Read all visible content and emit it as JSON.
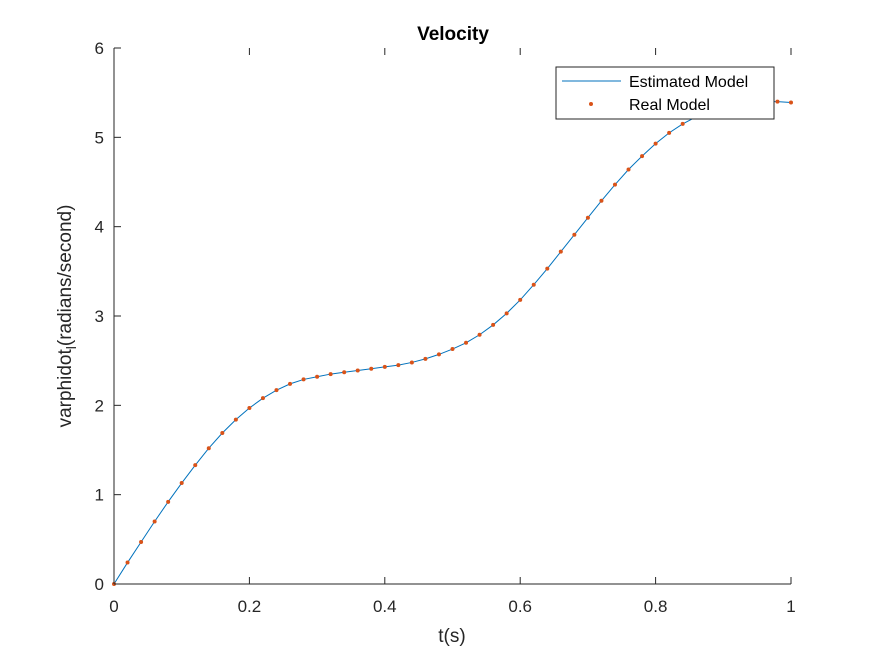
{
  "chart_data": {
    "type": "line",
    "title": "Velocity",
    "xlabel": "t(s)",
    "ylabel": "varphidot",
    "ylabel_subscript": "l",
    "ylabel_suffix": "(radians/second)",
    "xlim": [
      0,
      1
    ],
    "ylim": [
      0,
      6
    ],
    "xticks": [
      0,
      0.2,
      0.4,
      0.6,
      0.8,
      1
    ],
    "xtick_labels": [
      "0",
      "0.2",
      "0.4",
      "0.6",
      "0.8",
      "1"
    ],
    "yticks": [
      0,
      1,
      2,
      3,
      4,
      5,
      6
    ],
    "ytick_labels": [
      "0",
      "1",
      "2",
      "3",
      "4",
      "5",
      "6"
    ],
    "grid": false,
    "legend_position": "top-right",
    "series": [
      {
        "name": "Estimated Model",
        "style": "line",
        "color": "#0072BD",
        "x": [
          0,
          0.02,
          0.04,
          0.06,
          0.08,
          0.1,
          0.12,
          0.14,
          0.16,
          0.18,
          0.2,
          0.22,
          0.24,
          0.26,
          0.28,
          0.3,
          0.32,
          0.34,
          0.36,
          0.38,
          0.4,
          0.42,
          0.44,
          0.46,
          0.48,
          0.5,
          0.52,
          0.54,
          0.56,
          0.58,
          0.6,
          0.62,
          0.64,
          0.66,
          0.68,
          0.7,
          0.72,
          0.74,
          0.76,
          0.78,
          0.8,
          0.82,
          0.84,
          0.86,
          0.88,
          0.9,
          0.92,
          0.94,
          0.96,
          0.98,
          1.0
        ],
        "y": [
          0,
          0.24,
          0.47,
          0.7,
          0.92,
          1.13,
          1.33,
          1.52,
          1.69,
          1.84,
          1.97,
          2.08,
          2.17,
          2.24,
          2.29,
          2.32,
          2.35,
          2.37,
          2.39,
          2.41,
          2.43,
          2.45,
          2.48,
          2.52,
          2.57,
          2.63,
          2.7,
          2.79,
          2.9,
          3.03,
          3.18,
          3.35,
          3.53,
          3.72,
          3.91,
          4.1,
          4.29,
          4.47,
          4.64,
          4.79,
          4.93,
          5.05,
          5.15,
          5.23,
          5.3,
          5.35,
          5.38,
          5.4,
          5.4,
          5.4,
          5.39
        ]
      },
      {
        "name": "Real Model",
        "style": "markers",
        "color": "#D95319",
        "x": [
          0,
          0.02,
          0.04,
          0.06,
          0.08,
          0.1,
          0.12,
          0.14,
          0.16,
          0.18,
          0.2,
          0.22,
          0.24,
          0.26,
          0.28,
          0.3,
          0.32,
          0.34,
          0.36,
          0.38,
          0.4,
          0.42,
          0.44,
          0.46,
          0.48,
          0.5,
          0.52,
          0.54,
          0.56,
          0.58,
          0.6,
          0.62,
          0.64,
          0.66,
          0.68,
          0.7,
          0.72,
          0.74,
          0.76,
          0.78,
          0.8,
          0.82,
          0.84,
          0.86,
          0.88,
          0.9,
          0.92,
          0.94,
          0.96,
          0.98,
          1.0
        ],
        "y": [
          0,
          0.24,
          0.47,
          0.7,
          0.92,
          1.13,
          1.33,
          1.52,
          1.69,
          1.84,
          1.97,
          2.08,
          2.17,
          2.24,
          2.29,
          2.32,
          2.35,
          2.37,
          2.39,
          2.41,
          2.43,
          2.45,
          2.48,
          2.52,
          2.57,
          2.63,
          2.7,
          2.79,
          2.9,
          3.03,
          3.18,
          3.35,
          3.53,
          3.72,
          3.91,
          4.1,
          4.29,
          4.47,
          4.64,
          4.79,
          4.93,
          5.05,
          5.15,
          5.23,
          5.3,
          5.35,
          5.38,
          5.4,
          5.4,
          5.4,
          5.39
        ]
      }
    ]
  }
}
